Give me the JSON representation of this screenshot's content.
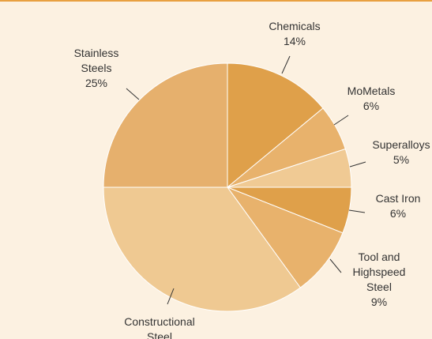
{
  "chart_data": {
    "type": "pie",
    "categories": [
      [
        "Chemicals"
      ],
      [
        "MoMetals"
      ],
      [
        "Superalloys"
      ],
      [
        "Cast Iron"
      ],
      [
        "Tool and",
        "Highspeed",
        "Steel"
      ],
      [
        "Constructional",
        "Steel"
      ],
      [
        "Stainless",
        "Steels"
      ]
    ],
    "values": [
      14,
      6,
      5,
      6,
      9,
      35,
      25
    ],
    "value_labels": [
      "14%",
      "6%",
      "5%",
      "6%",
      "9%",
      null,
      "25%"
    ],
    "colors": [
      "#dfa04a",
      "#e8b26c",
      "#f0ca94",
      "#dfa04a",
      "#e8b26c",
      "#efc992",
      "#e6b06d"
    ]
  }
}
